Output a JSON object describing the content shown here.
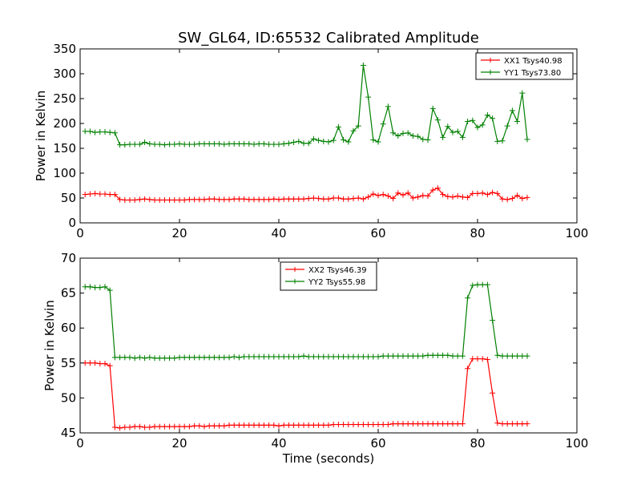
{
  "title": "SW_GL64, ID:65532 Calibrated Amplitude",
  "colors": {
    "red": "#ff0000",
    "green": "#008000"
  },
  "chart_data": [
    {
      "type": "line",
      "ylabel": "Power in Kelvin",
      "xlabel": "",
      "xlim": [
        0,
        100
      ],
      "ylim": [
        0,
        350
      ],
      "xticks": [
        0,
        20,
        40,
        60,
        80,
        100
      ],
      "yticks": [
        0,
        50,
        100,
        150,
        200,
        250,
        300,
        350
      ],
      "grid": false,
      "legend_position": "top-right",
      "x": [
        1,
        2,
        3,
        4,
        5,
        6,
        7,
        8,
        9,
        10,
        11,
        12,
        13,
        14,
        15,
        16,
        17,
        18,
        19,
        20,
        21,
        22,
        23,
        24,
        25,
        26,
        27,
        28,
        29,
        30,
        31,
        32,
        33,
        34,
        35,
        36,
        37,
        38,
        39,
        40,
        41,
        42,
        43,
        44,
        45,
        46,
        47,
        48,
        49,
        50,
        51,
        52,
        53,
        54,
        55,
        56,
        57,
        58,
        59,
        60,
        61,
        62,
        63,
        64,
        65,
        66,
        67,
        68,
        69,
        70,
        71,
        72,
        73,
        74,
        75,
        76,
        77,
        78,
        79,
        80,
        81,
        82,
        83,
        84,
        85,
        86,
        87,
        88,
        89,
        90
      ],
      "series": [
        {
          "name": "XX1 Tsys40.98",
          "color": "#ff0000",
          "values": [
            57,
            58,
            59,
            58,
            58,
            57,
            57,
            47,
            46,
            46,
            46,
            47,
            48,
            47,
            46,
            46,
            46,
            46,
            46,
            46,
            46,
            47,
            47,
            47,
            47,
            48,
            48,
            47,
            47,
            47,
            48,
            48,
            48,
            47,
            47,
            47,
            47,
            47,
            48,
            47,
            48,
            48,
            48,
            48,
            48,
            49,
            50,
            49,
            48,
            48,
            50,
            50,
            48,
            48,
            49,
            50,
            48,
            52,
            58,
            55,
            57,
            54,
            49,
            60,
            56,
            60,
            50,
            52,
            55,
            54,
            66,
            70,
            57,
            53,
            52,
            54,
            52,
            51,
            59,
            59,
            60,
            57,
            61,
            59,
            48,
            47,
            49,
            55,
            49,
            51
          ]
        },
        {
          "name": "YY1 Tsys73.80",
          "color": "#008000",
          "values": [
            184,
            184,
            182,
            183,
            183,
            182,
            181,
            157,
            157,
            158,
            158,
            158,
            162,
            159,
            158,
            158,
            157,
            158,
            158,
            159,
            158,
            158,
            158,
            159,
            159,
            159,
            159,
            159,
            158,
            159,
            159,
            159,
            159,
            159,
            158,
            159,
            159,
            158,
            158,
            158,
            159,
            160,
            162,
            164,
            160,
            160,
            169,
            166,
            164,
            163,
            166,
            193,
            167,
            163,
            185,
            195,
            317,
            253,
            167,
            163,
            199,
            234,
            181,
            175,
            180,
            181,
            175,
            174,
            168,
            167,
            230,
            207,
            172,
            194,
            182,
            184,
            172,
            204,
            206,
            192,
            197,
            217,
            210,
            164,
            165,
            195,
            226,
            204,
            261,
            168
          ]
        }
      ]
    },
    {
      "type": "line",
      "ylabel": "Power in Kelvin",
      "xlabel": "Time (seconds)",
      "xlim": [
        0,
        100
      ],
      "ylim": [
        45,
        70
      ],
      "xticks": [
        0,
        20,
        40,
        60,
        80,
        100
      ],
      "yticks": [
        45,
        50,
        55,
        60,
        65,
        70
      ],
      "grid": false,
      "legend_position": "top-center",
      "x": [
        1,
        2,
        3,
        4,
        5,
        6,
        7,
        8,
        9,
        10,
        11,
        12,
        13,
        14,
        15,
        16,
        17,
        18,
        19,
        20,
        21,
        22,
        23,
        24,
        25,
        26,
        27,
        28,
        29,
        30,
        31,
        32,
        33,
        34,
        35,
        36,
        37,
        38,
        39,
        40,
        41,
        42,
        43,
        44,
        45,
        46,
        47,
        48,
        49,
        50,
        51,
        52,
        53,
        54,
        55,
        56,
        57,
        58,
        59,
        60,
        61,
        62,
        63,
        64,
        65,
        66,
        67,
        68,
        69,
        70,
        71,
        72,
        73,
        74,
        75,
        76,
        77,
        78,
        79,
        80,
        81,
        82,
        83,
        84,
        85,
        86,
        87,
        88,
        89,
        90
      ],
      "series": [
        {
          "name": "XX2 Tsys46.39",
          "color": "#ff0000",
          "values": [
            55,
            55,
            55,
            54.9,
            54.9,
            54.6,
            45.8,
            45.7,
            45.8,
            45.8,
            45.9,
            45.9,
            45.8,
            45.8,
            45.9,
            45.9,
            45.9,
            45.9,
            45.9,
            45.9,
            45.9,
            45.9,
            46.0,
            46.0,
            45.9,
            46.0,
            46.0,
            46.0,
            46.0,
            46.1,
            46.1,
            46.1,
            46.1,
            46.1,
            46.1,
            46.1,
            46.1,
            46.1,
            46.1,
            46.0,
            46.1,
            46.1,
            46.1,
            46.1,
            46.1,
            46.1,
            46.1,
            46.1,
            46.1,
            46.1,
            46.2,
            46.2,
            46.2,
            46.2,
            46.2,
            46.2,
            46.2,
            46.2,
            46.2,
            46.2,
            46.2,
            46.2,
            46.3,
            46.3,
            46.3,
            46.3,
            46.3,
            46.3,
            46.3,
            46.3,
            46.3,
            46.3,
            46.3,
            46.3,
            46.3,
            46.3,
            46.3,
            54.2,
            55.6,
            55.6,
            55.6,
            55.5,
            50.7,
            46.4,
            46.3,
            46.3,
            46.3,
            46.3,
            46.3,
            46.3
          ]
        },
        {
          "name": "YY2 Tsys55.98",
          "color": "#008000",
          "values": [
            65.9,
            65.9,
            65.8,
            65.8,
            65.9,
            65.4,
            55.8,
            55.8,
            55.8,
            55.8,
            55.7,
            55.8,
            55.7,
            55.8,
            55.7,
            55.7,
            55.7,
            55.7,
            55.7,
            55.8,
            55.8,
            55.8,
            55.8,
            55.8,
            55.8,
            55.8,
            55.8,
            55.8,
            55.8,
            55.8,
            55.9,
            55.8,
            55.9,
            55.9,
            55.9,
            55.9,
            55.9,
            55.9,
            55.9,
            55.9,
            55.9,
            55.9,
            55.9,
            55.9,
            56.0,
            55.9,
            55.9,
            55.9,
            55.9,
            55.9,
            55.9,
            55.9,
            55.9,
            55.9,
            55.9,
            55.9,
            55.9,
            55.9,
            55.9,
            55.9,
            56.0,
            56.0,
            56.0,
            56.0,
            56.0,
            56.0,
            56.0,
            56.0,
            56.0,
            56.1,
            56.1,
            56.1,
            56.1,
            56.1,
            56.0,
            56.0,
            56.0,
            64.3,
            66.1,
            66.2,
            66.2,
            66.2,
            61.1,
            56.1,
            56.0,
            56.0,
            56.0,
            56.0,
            56.0,
            56.0
          ]
        }
      ]
    }
  ]
}
